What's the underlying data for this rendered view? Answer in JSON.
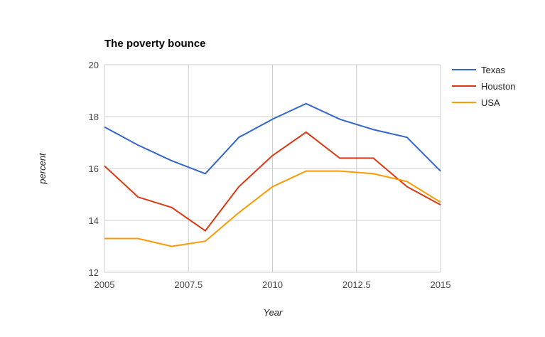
{
  "chart_data": {
    "type": "line",
    "title": "The poverty bounce",
    "xlabel": "Year",
    "ylabel": "percent",
    "xlim": [
      2005,
      2015
    ],
    "ylim": [
      12,
      20
    ],
    "x_ticks": [
      "2005",
      "2007.5",
      "2010",
      "2012.5",
      "2015"
    ],
    "y_ticks": [
      "12",
      "14",
      "16",
      "18",
      "20"
    ],
    "grid": true,
    "legend_position": "right",
    "x": [
      2005,
      2006,
      2007,
      2008,
      2009,
      2010,
      2011,
      2012,
      2013,
      2014,
      2015
    ],
    "series": [
      {
        "name": "Texas",
        "color": "#3366cc",
        "values": [
          17.6,
          16.9,
          16.3,
          15.8,
          17.2,
          17.9,
          18.5,
          17.9,
          17.5,
          17.2,
          15.9
        ]
      },
      {
        "name": "Houston",
        "color": "#dc3912",
        "values": [
          16.1,
          14.9,
          14.5,
          13.6,
          15.3,
          16.5,
          17.4,
          16.4,
          16.4,
          15.3,
          14.6
        ]
      },
      {
        "name": "USA",
        "color": "#ff9900",
        "values": [
          13.3,
          13.3,
          13.0,
          13.2,
          14.3,
          15.3,
          15.9,
          15.9,
          15.8,
          15.5,
          14.7
        ]
      }
    ]
  }
}
